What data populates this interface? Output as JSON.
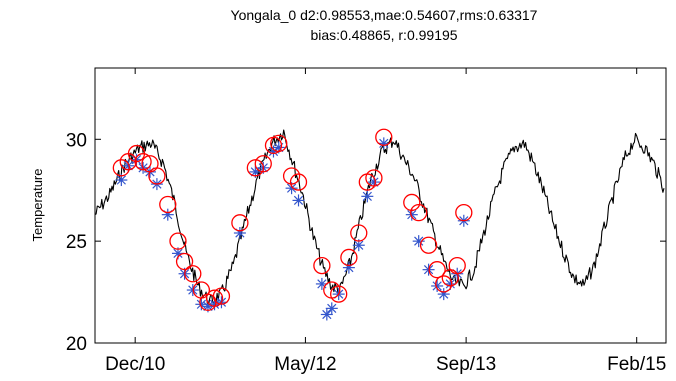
{
  "chart_data": {
    "type": "line",
    "title": [
      "Yongala_0 d2:0.98553,mae:0.54607,rms:0.63317",
      "bias:0.48865, r:0.99195"
    ],
    "xlabel": "",
    "ylabel": "Temperature",
    "ylim": [
      20,
      33.5
    ],
    "yticks": [
      20,
      25,
      30
    ],
    "xticks": [
      {
        "label": "Dec/10",
        "date": "2010-12-01"
      },
      {
        "label": "May/12",
        "date": "2012-05-01"
      },
      {
        "label": "Sep/13",
        "date": "2013-09-01"
      },
      {
        "label": "Feb/15",
        "date": "2015-02-01"
      }
    ],
    "xlim": [
      "2010-08-01",
      "2015-05-01"
    ],
    "grid": false,
    "series": [
      {
        "marker": "line",
        "color": "#000000",
        "points": [
          [
            "2010-08-01",
            26.3
          ],
          [
            "2010-09-15",
            27.3
          ],
          [
            "2010-11-01",
            28.8
          ],
          [
            "2010-12-15",
            29.6
          ],
          [
            "2011-01-20",
            29.8
          ],
          [
            "2011-02-25",
            28.8
          ],
          [
            "2011-04-01",
            26.8
          ],
          [
            "2011-05-05",
            24.4
          ],
          [
            "2011-06-10",
            22.8
          ],
          [
            "2011-07-15",
            22.0
          ],
          [
            "2011-08-20",
            22.4
          ],
          [
            "2011-09-25",
            23.8
          ],
          [
            "2011-11-01",
            26.0
          ],
          [
            "2011-12-10",
            28.2
          ],
          [
            "2012-01-20",
            29.8
          ],
          [
            "2012-02-25",
            30.4
          ],
          [
            "2012-03-25",
            28.8
          ],
          [
            "2012-04-25",
            27.2
          ],
          [
            "2012-05-25",
            25.2
          ],
          [
            "2012-06-25",
            23.6
          ],
          [
            "2012-07-20",
            22.8
          ],
          [
            "2012-08-15",
            22.6
          ],
          [
            "2012-09-15",
            24.0
          ],
          [
            "2012-10-15",
            26.0
          ],
          [
            "2012-11-15",
            28.0
          ],
          [
            "2012-12-20",
            29.4
          ],
          [
            "2013-01-25",
            30.0
          ],
          [
            "2013-02-25",
            29.0
          ],
          [
            "2013-03-25",
            28.2
          ],
          [
            "2013-04-25",
            26.8
          ],
          [
            "2013-05-25",
            25.4
          ],
          [
            "2013-06-25",
            24.0
          ],
          [
            "2013-07-25",
            23.0
          ],
          [
            "2013-08-25",
            22.8
          ],
          [
            "2013-09-25",
            23.6
          ],
          [
            "2013-10-25",
            25.4
          ],
          [
            "2013-11-25",
            27.2
          ],
          [
            "2013-12-25",
            28.6
          ],
          [
            "2014-01-25",
            29.6
          ],
          [
            "2014-02-25",
            29.8
          ],
          [
            "2014-03-25",
            28.8
          ],
          [
            "2014-04-25",
            27.4
          ],
          [
            "2014-05-25",
            25.8
          ],
          [
            "2014-06-25",
            24.4
          ],
          [
            "2014-07-25",
            23.2
          ],
          [
            "2014-08-25",
            22.8
          ],
          [
            "2014-09-25",
            23.8
          ],
          [
            "2014-10-25",
            25.6
          ],
          [
            "2014-11-25",
            27.4
          ],
          [
            "2014-12-25",
            29.0
          ],
          [
            "2015-01-25",
            30.0
          ],
          [
            "2015-02-25",
            29.6
          ],
          [
            "2015-03-25",
            28.8
          ],
          [
            "2015-04-25",
            27.6
          ]
        ]
      },
      {
        "marker": "circle",
        "color": "#ff0000",
        "points": [
          [
            "2010-10-20",
            28.6
          ],
          [
            "2010-11-10",
            28.9
          ],
          [
            "2010-12-05",
            29.3
          ],
          [
            "2010-12-25",
            28.9
          ],
          [
            "2011-01-15",
            28.8
          ],
          [
            "2011-02-05",
            28.2
          ],
          [
            "2011-03-10",
            26.8
          ],
          [
            "2011-04-10",
            25.0
          ],
          [
            "2011-04-30",
            24.0
          ],
          [
            "2011-05-25",
            23.4
          ],
          [
            "2011-06-20",
            22.6
          ],
          [
            "2011-07-10",
            22.0
          ],
          [
            "2011-07-30",
            22.2
          ],
          [
            "2011-08-20",
            22.3
          ],
          [
            "2011-10-15",
            25.9
          ],
          [
            "2011-12-01",
            28.6
          ],
          [
            "2011-12-25",
            28.8
          ],
          [
            "2012-01-25",
            29.7
          ],
          [
            "2012-02-10",
            29.8
          ],
          [
            "2012-03-20",
            28.2
          ],
          [
            "2012-04-10",
            27.9
          ],
          [
            "2012-06-20",
            23.8
          ],
          [
            "2012-07-20",
            22.6
          ],
          [
            "2012-08-10",
            22.4
          ],
          [
            "2012-09-10",
            24.2
          ],
          [
            "2012-10-10",
            25.4
          ],
          [
            "2012-11-05",
            27.9
          ],
          [
            "2012-11-25",
            28.1
          ],
          [
            "2012-12-25",
            30.1
          ],
          [
            "2013-03-20",
            26.9
          ],
          [
            "2013-04-10",
            26.4
          ],
          [
            "2013-05-10",
            24.8
          ],
          [
            "2013-06-05",
            23.6
          ],
          [
            "2013-06-25",
            22.9
          ],
          [
            "2013-07-15",
            23.2
          ],
          [
            "2013-08-05",
            23.8
          ],
          [
            "2013-08-25",
            26.4
          ]
        ]
      },
      {
        "marker": "asterisk",
        "color": "#3355cc",
        "points": [
          [
            "2010-10-20",
            28.0
          ],
          [
            "2010-11-10",
            28.7
          ],
          [
            "2010-12-05",
            29.0
          ],
          [
            "2010-12-25",
            28.6
          ],
          [
            "2011-01-15",
            28.4
          ],
          [
            "2011-02-05",
            27.8
          ],
          [
            "2011-03-10",
            26.3
          ],
          [
            "2011-04-10",
            24.4
          ],
          [
            "2011-04-30",
            23.4
          ],
          [
            "2011-05-25",
            22.6
          ],
          [
            "2011-06-20",
            21.9
          ],
          [
            "2011-07-10",
            21.8
          ],
          [
            "2011-07-30",
            21.9
          ],
          [
            "2011-08-20",
            22.0
          ],
          [
            "2011-10-15",
            25.4
          ],
          [
            "2011-12-01",
            28.4
          ],
          [
            "2011-12-25",
            28.6
          ],
          [
            "2012-01-25",
            29.4
          ],
          [
            "2012-02-10",
            29.6
          ],
          [
            "2012-03-20",
            27.6
          ],
          [
            "2012-04-10",
            27.0
          ],
          [
            "2012-06-20",
            22.9
          ],
          [
            "2012-07-05",
            21.4
          ],
          [
            "2012-07-20",
            21.7
          ],
          [
            "2012-08-10",
            22.4
          ],
          [
            "2012-09-10",
            23.7
          ],
          [
            "2012-10-10",
            24.8
          ],
          [
            "2012-11-05",
            27.2
          ],
          [
            "2012-11-25",
            27.9
          ],
          [
            "2012-12-25",
            29.8
          ],
          [
            "2013-03-20",
            26.3
          ],
          [
            "2013-04-10",
            25.0
          ],
          [
            "2013-05-10",
            23.6
          ],
          [
            "2013-06-05",
            22.8
          ],
          [
            "2013-06-25",
            22.4
          ],
          [
            "2013-07-15",
            22.9
          ],
          [
            "2013-08-05",
            23.4
          ],
          [
            "2013-08-25",
            26.0
          ]
        ]
      }
    ]
  }
}
